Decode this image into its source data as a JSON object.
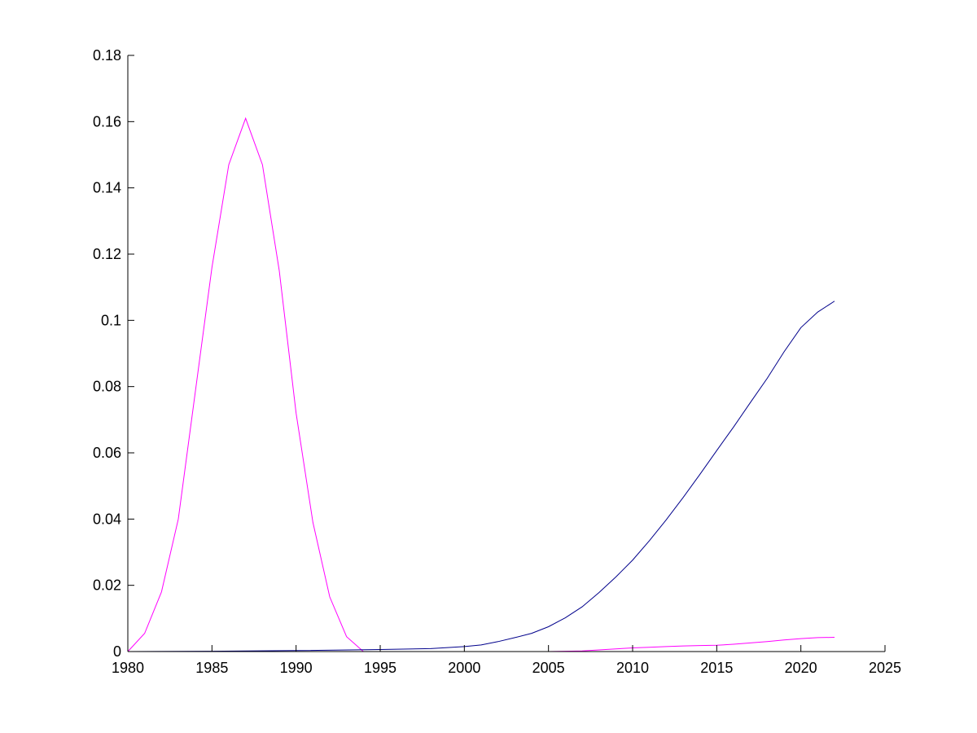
{
  "chart_data": {
    "type": "line",
    "title": "",
    "xlabel": "",
    "ylabel": "",
    "xlim": [
      1980,
      2025
    ],
    "ylim": [
      0,
      0.18
    ],
    "x_ticks": [
      1980,
      1985,
      1990,
      1995,
      2000,
      2005,
      2010,
      2015,
      2020,
      2025
    ],
    "y_ticks": [
      0,
      0.02,
      0.04,
      0.06,
      0.08,
      0.1,
      0.12,
      0.14,
      0.16,
      0.18
    ],
    "x_tick_labels": [
      "1980",
      "1985",
      "1990",
      "1995",
      "2000",
      "2005",
      "2010",
      "2015",
      "2020",
      "2025"
    ],
    "y_tick_labels": [
      "0",
      "0.02",
      "0.04",
      "0.06",
      "0.08",
      "0.1",
      "0.12",
      "0.14",
      "0.16",
      "0.18"
    ],
    "grid": false,
    "legend": "none",
    "series": [
      {
        "color": "#ff00ff",
        "x": [
          1980,
          1981,
          1982,
          1983,
          1984,
          1985,
          1986,
          1987,
          1988,
          1989,
          1990,
          1991,
          1992,
          1993,
          1994,
          1995,
          2000,
          2005,
          2006,
          2007,
          2008,
          2009,
          2010,
          2011,
          2012,
          2013,
          2014,
          2015,
          2016,
          2017,
          2018,
          2019,
          2020,
          2021,
          2022
        ],
        "y": [
          0,
          0.0055,
          0.018,
          0.04,
          0.078,
          0.116,
          0.147,
          0.161,
          0.147,
          0.115,
          0.072,
          0.039,
          0.0165,
          0.0045,
          0,
          0,
          0,
          0,
          0.0001,
          0.0002,
          0.0005,
          0.0008,
          0.0011,
          0.0013,
          0.0015,
          0.0017,
          0.0018,
          0.0019,
          0.0022,
          0.0026,
          0.003,
          0.0035,
          0.0039,
          0.0042,
          0.0043
        ]
      },
      {
        "color": "#00008b",
        "x": [
          1980,
          1985,
          1990,
          1995,
          1998,
          2000,
          2001,
          2002,
          2003,
          2004,
          2005,
          2006,
          2007,
          2008,
          2009,
          2010,
          2011,
          2012,
          2013,
          2014,
          2015,
          2016,
          2017,
          2018,
          2019,
          2020,
          2021,
          2022
        ],
        "y": [
          0,
          0.0001,
          0.0003,
          0.0006,
          0.0009,
          0.0015,
          0.002,
          0.003,
          0.0042,
          0.0055,
          0.0075,
          0.0102,
          0.0135,
          0.0178,
          0.0225,
          0.0276,
          0.0335,
          0.0398,
          0.0465,
          0.0535,
          0.0607,
          0.0678,
          0.0752,
          0.0825,
          0.0905,
          0.0978,
          0.1025,
          0.1058
        ]
      }
    ]
  }
}
